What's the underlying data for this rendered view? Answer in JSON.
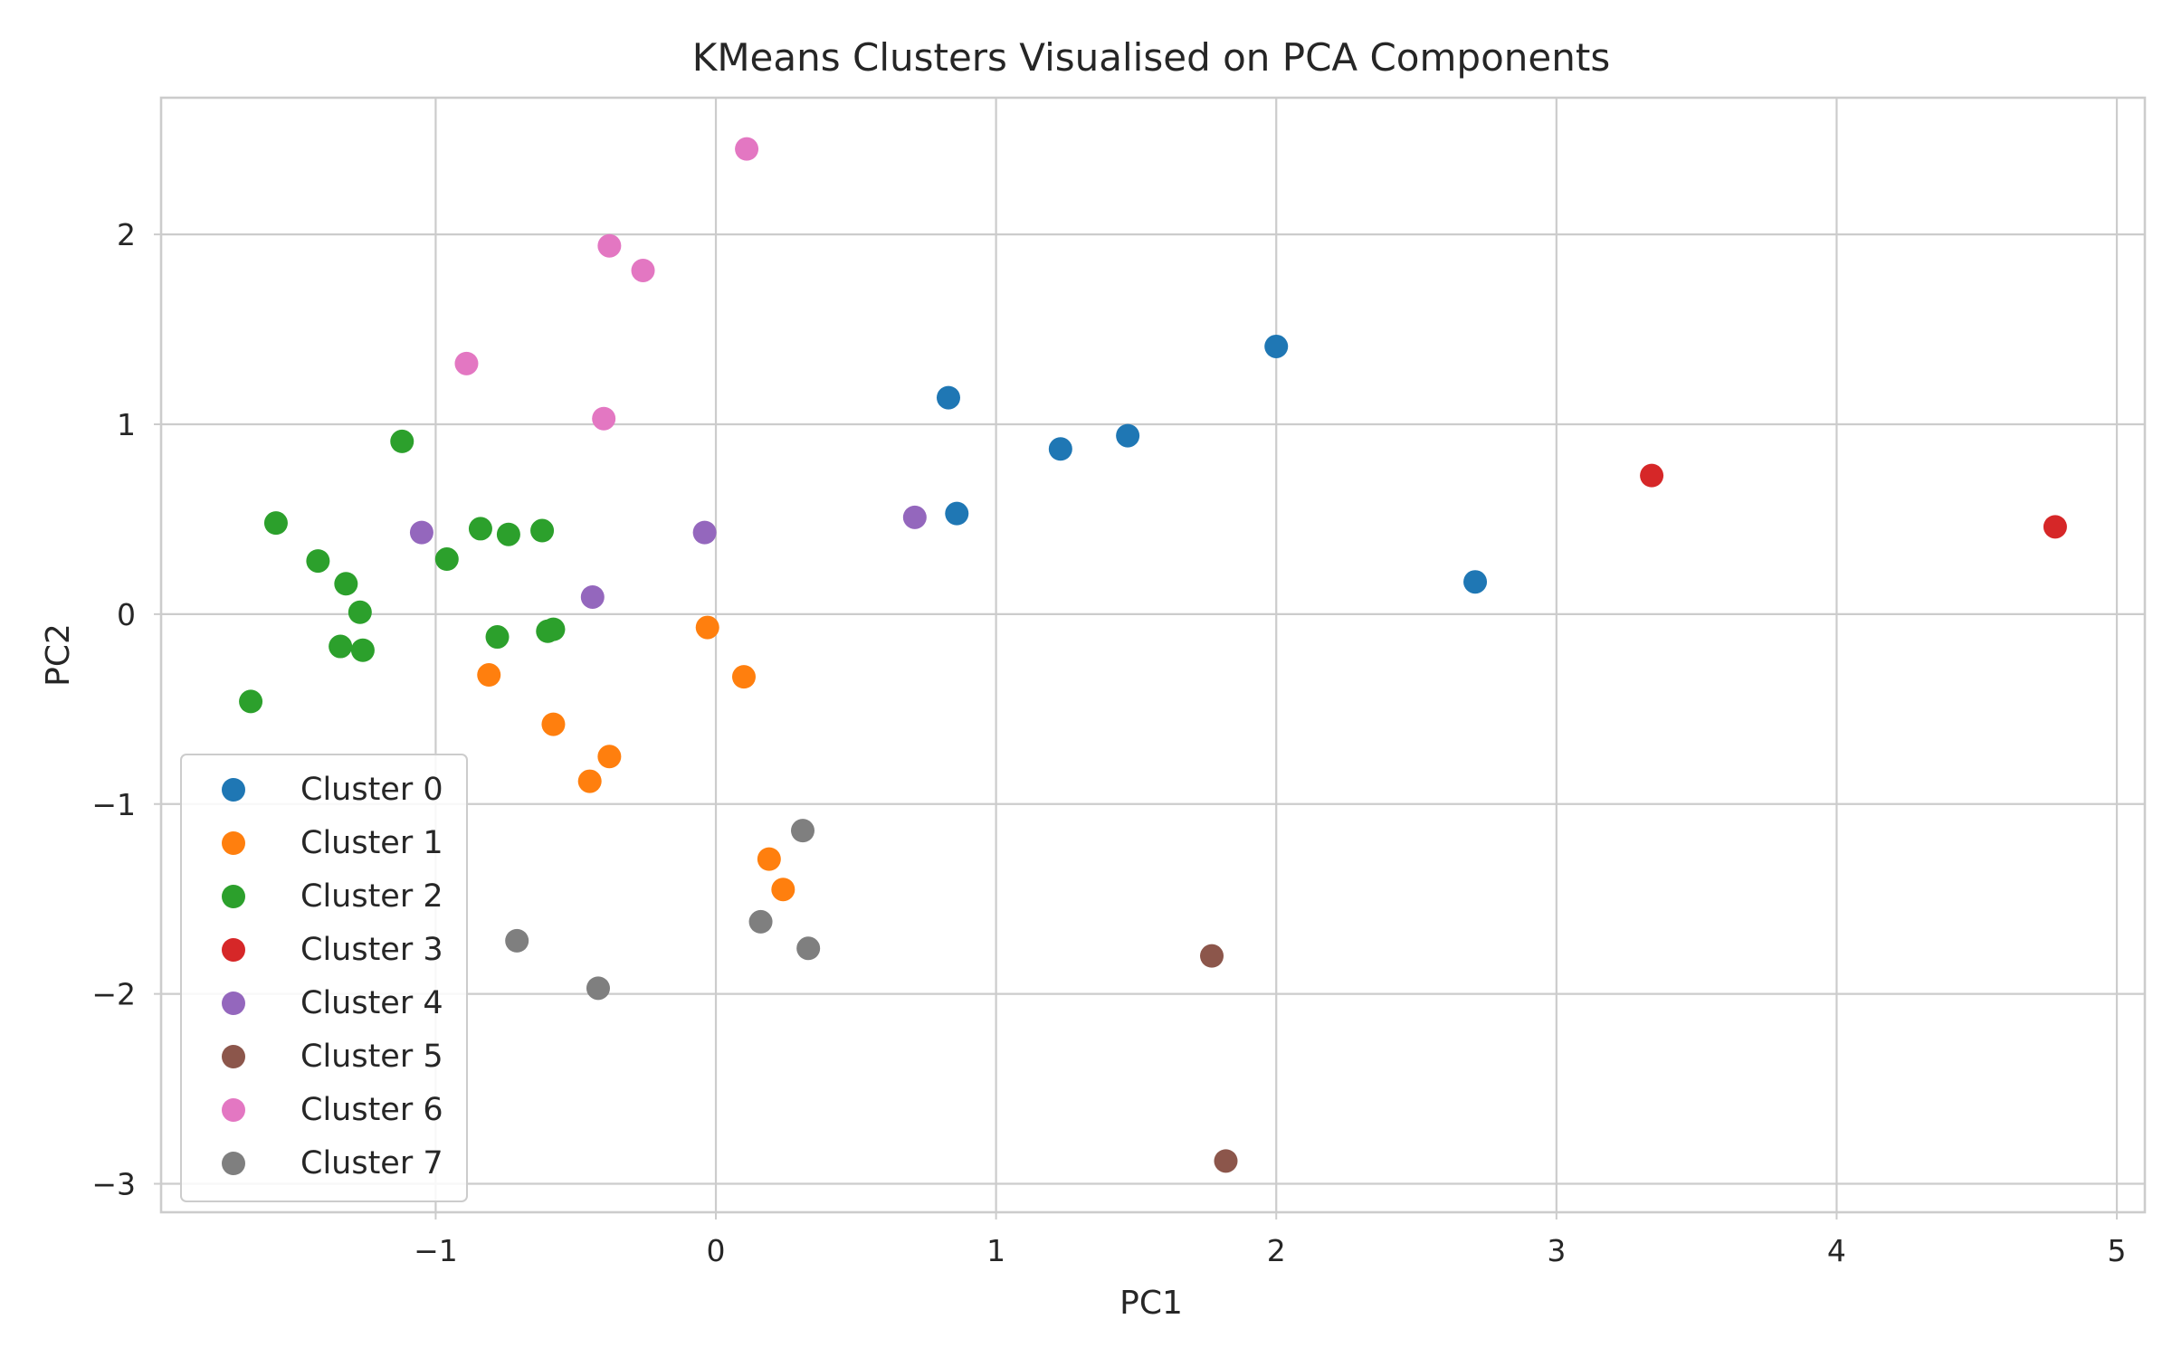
{
  "chart_data": {
    "type": "scatter",
    "title": "KMeans Clusters Visualised on PCA Components",
    "xlabel": "PC1",
    "ylabel": "PC2",
    "xlim": [
      -1.98,
      5.1
    ],
    "ylim": [
      -3.15,
      2.72
    ],
    "xticks": [
      -1,
      0,
      1,
      2,
      3,
      4,
      5
    ],
    "yticks": [
      -3,
      -2,
      -1,
      0,
      1,
      2
    ],
    "xtick_labels": [
      "−1",
      "0",
      "1",
      "2",
      "3",
      "4",
      "5"
    ],
    "ytick_labels": [
      "−3",
      "−2",
      "−1",
      "0",
      "1",
      "2"
    ],
    "grid": true,
    "legend_position": "lower-left",
    "series": [
      {
        "name": "Cluster 0",
        "color": "#1f77b4",
        "points": [
          [
            2.0,
            1.41
          ],
          [
            0.83,
            1.14
          ],
          [
            1.23,
            0.87
          ],
          [
            1.47,
            0.94
          ],
          [
            0.86,
            0.53
          ],
          [
            2.71,
            0.17
          ]
        ]
      },
      {
        "name": "Cluster 1",
        "color": "#ff7f0e",
        "points": [
          [
            -0.03,
            -0.07
          ],
          [
            0.1,
            -0.33
          ],
          [
            -0.81,
            -0.32
          ],
          [
            -0.58,
            -0.58
          ],
          [
            -0.38,
            -0.75
          ],
          [
            -0.45,
            -0.88
          ],
          [
            0.19,
            -1.29
          ],
          [
            0.24,
            -1.45
          ]
        ]
      },
      {
        "name": "Cluster 2",
        "color": "#2ca02c",
        "points": [
          [
            -1.12,
            0.91
          ],
          [
            -1.57,
            0.48
          ],
          [
            -0.84,
            0.45
          ],
          [
            -0.74,
            0.42
          ],
          [
            -0.62,
            0.44
          ],
          [
            -0.96,
            0.29
          ],
          [
            -1.42,
            0.28
          ],
          [
            -1.32,
            0.16
          ],
          [
            -1.27,
            0.01
          ],
          [
            -1.34,
            -0.17
          ],
          [
            -1.26,
            -0.19
          ],
          [
            -0.78,
            -0.12
          ],
          [
            -0.6,
            -0.09
          ],
          [
            -0.58,
            -0.08
          ],
          [
            -1.66,
            -0.46
          ]
        ]
      },
      {
        "name": "Cluster 3",
        "color": "#d62728",
        "points": [
          [
            3.34,
            0.73
          ],
          [
            4.78,
            0.46
          ]
        ]
      },
      {
        "name": "Cluster 4",
        "color": "#9467bd",
        "points": [
          [
            -1.05,
            0.43
          ],
          [
            -0.04,
            0.43
          ],
          [
            0.71,
            0.51
          ],
          [
            -0.44,
            0.09
          ]
        ]
      },
      {
        "name": "Cluster 5",
        "color": "#8c564b",
        "points": [
          [
            1.77,
            -1.8
          ],
          [
            1.82,
            -2.88
          ]
        ]
      },
      {
        "name": "Cluster 6",
        "color": "#e377c2",
        "points": [
          [
            0.11,
            2.45
          ],
          [
            -0.38,
            1.94
          ],
          [
            -0.26,
            1.81
          ],
          [
            -0.89,
            1.32
          ],
          [
            -0.4,
            1.03
          ]
        ]
      },
      {
        "name": "Cluster 7",
        "color": "#7f7f7f",
        "points": [
          [
            0.31,
            -1.14
          ],
          [
            0.16,
            -1.62
          ],
          [
            0.33,
            -1.76
          ],
          [
            -0.71,
            -1.72
          ],
          [
            -0.42,
            -1.97
          ]
        ]
      }
    ]
  }
}
